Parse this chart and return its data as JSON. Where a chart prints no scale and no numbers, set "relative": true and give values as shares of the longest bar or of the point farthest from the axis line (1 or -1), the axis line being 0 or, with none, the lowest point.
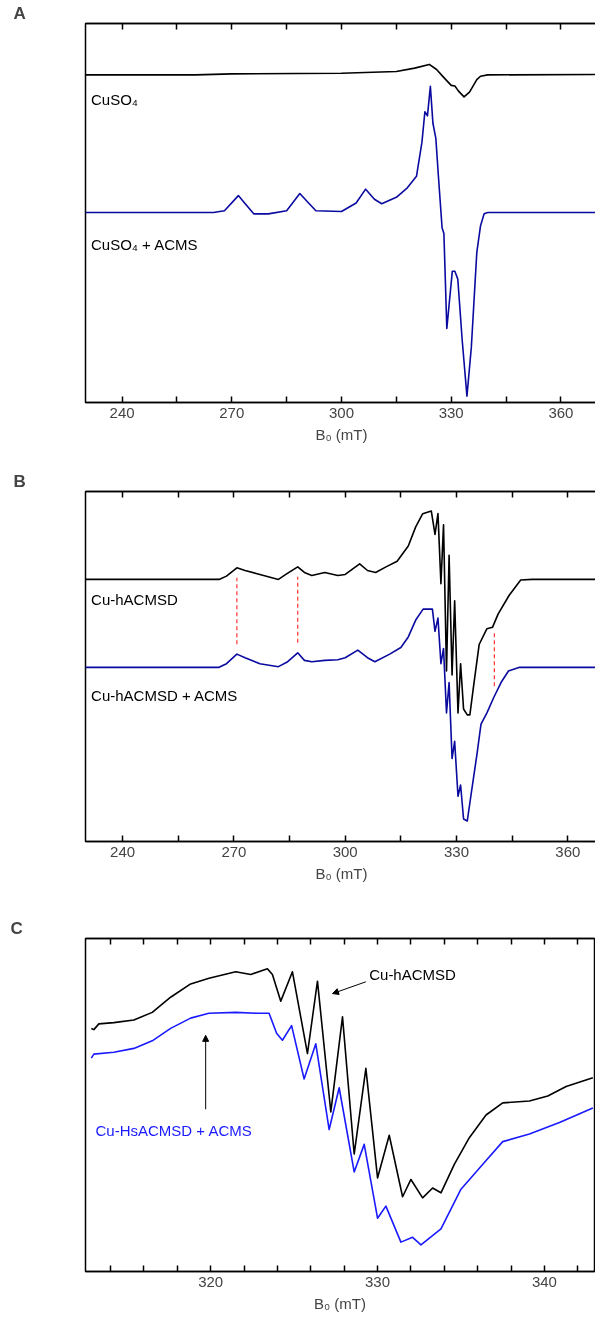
{
  "chart_data": [
    {
      "type": "line",
      "title": "A",
      "xlabel": "B₀ (mT)",
      "relative": true,
      "xlim": [
        230,
        370
      ],
      "xticks": [
        240,
        {
          "value": 255,
          "label": null
        },
        270,
        {
          "value": 285,
          "label": null
        },
        300,
        {
          "value": 315,
          "label": null
        },
        330,
        {
          "value": 345,
          "label": null
        },
        360
      ],
      "series": [
        {
          "name": "CuSO₄",
          "color": "#000000",
          "x": [
            230,
            260,
            270,
            300,
            315,
            320,
            324,
            326,
            328,
            330,
            331,
            332,
            333.5,
            335,
            337,
            338,
            340,
            370
          ],
          "values": [
            0.969,
            0.969,
            0.972,
            0.974,
            0.979,
            0.989,
            1.0,
            0.985,
            0.961,
            0.938,
            0.936,
            0.921,
            0.904,
            0.918,
            0.955,
            0.965,
            0.969,
            0.97
          ]
        },
        {
          "name": "CuSO₄ + ACMS",
          "color": "#0a0aa0",
          "x": [
            230,
            265,
            268,
            271.8,
            273.5,
            276,
            280,
            285,
            288.6,
            291,
            293,
            300,
            304,
            306.6,
            309,
            311,
            315,
            318,
            320.5,
            322,
            322.8,
            323.5,
            324.3,
            325,
            325.8,
            326.5,
            327.5,
            328,
            328.8,
            329.2,
            330.3,
            331,
            331.8,
            333,
            334.3,
            335.5,
            337,
            338,
            339,
            340,
            370
          ],
          "values": [
            0.562,
            0.562,
            0.567,
            0.612,
            0.59,
            0.558,
            0.558,
            0.567,
            0.618,
            0.59,
            0.567,
            0.565,
            0.59,
            0.631,
            0.601,
            0.588,
            0.607,
            0.635,
            0.669,
            0.77,
            0.86,
            0.848,
            0.935,
            0.826,
            0.781,
            0.669,
            0.517,
            0.5,
            0.219,
            0.264,
            0.388,
            0.388,
            0.365,
            0.185,
            0.019,
            0.163,
            0.444,
            0.522,
            0.558,
            0.562,
            0.562
          ]
        }
      ]
    },
    {
      "type": "line",
      "title": "B",
      "xlabel": "B₀ (mT)",
      "relative": true,
      "xlim": [
        230,
        368
      ],
      "xticks": [
        240,
        {
          "value": 255,
          "label": null
        },
        270,
        {
          "value": 285,
          "label": null
        },
        300,
        {
          "value": 315,
          "label": null
        },
        330,
        {
          "value": 345,
          "label": null
        },
        360
      ],
      "ref_lines": [
        {
          "axis": "x",
          "value": 270.8,
          "color": "#ff3333",
          "line_style": "dashed"
        },
        {
          "axis": "x",
          "value": 287.2,
          "color": "#ff3333",
          "line_style": "dashed"
        },
        {
          "axis": "x",
          "value": 340.2,
          "color": "#ff3333",
          "line_style": "dashed"
        }
      ],
      "series": [
        {
          "name": "Cu-hACMSD",
          "color": "#000000",
          "x": [
            230,
            266,
            268,
            270.8,
            273,
            276,
            282,
            284,
            287.2,
            289,
            291,
            294.5,
            298,
            300,
            303.9,
            306,
            308.2,
            311,
            314,
            317,
            319,
            320.9,
            323.2,
            324.2,
            325,
            325.8,
            326.5,
            327.3,
            328,
            328.8,
            329.5,
            330.4,
            331.1,
            331.9,
            332.9,
            333.6,
            334.6,
            336.1,
            338.2,
            339.7,
            341.2,
            344.2,
            347.3,
            350.4,
            368
          ],
          "values": [
            0.793,
            0.793,
            0.803,
            0.828,
            0.82,
            0.811,
            0.793,
            0.808,
            0.831,
            0.814,
            0.805,
            0.814,
            0.805,
            0.808,
            0.84,
            0.82,
            0.814,
            0.831,
            0.848,
            0.894,
            0.952,
            0.992,
            1.0,
            0.929,
            0.992,
            0.78,
            0.958,
            0.516,
            0.866,
            0.504,
            0.728,
            0.389,
            0.538,
            0.401,
            0.383,
            0.383,
            0.47,
            0.596,
            0.644,
            0.648,
            0.688,
            0.745,
            0.791,
            0.793,
            0.793
          ]
        },
        {
          "name": "Cu-hACMSD + ACMS",
          "color": "#0a0aa0",
          "x": [
            230,
            266,
            268,
            270.8,
            273,
            277,
            282,
            284.5,
            287.2,
            289,
            291,
            294.5,
            298,
            300,
            303.4,
            306,
            308,
            312,
            315,
            317,
            319,
            321,
            323.5,
            324.2,
            325,
            325.8,
            326.5,
            327.3,
            328,
            328.8,
            329.5,
            330.4,
            331.1,
            331.9,
            332.9,
            334,
            335.5,
            336.6,
            338.2,
            340,
            342,
            344,
            347,
            368
          ],
          "values": [
            0.527,
            0.527,
            0.538,
            0.567,
            0.556,
            0.538,
            0.529,
            0.544,
            0.571,
            0.548,
            0.544,
            0.548,
            0.55,
            0.556,
            0.579,
            0.556,
            0.544,
            0.567,
            0.587,
            0.619,
            0.67,
            0.703,
            0.703,
            0.636,
            0.676,
            0.538,
            0.584,
            0.389,
            0.481,
            0.251,
            0.303,
            0.137,
            0.171,
            0.068,
            0.062,
            0.148,
            0.263,
            0.355,
            0.389,
            0.435,
            0.481,
            0.516,
            0.527,
            0.527
          ]
        }
      ]
    },
    {
      "type": "line",
      "title": "C",
      "xlabel": "B₀ (mT)",
      "relative": true,
      "xlim": [
        312.5,
        343
      ],
      "xticks": [
        {
          "value": 314,
          "label": null
        },
        {
          "value": 316,
          "label": null
        },
        {
          "value": 318,
          "label": null
        },
        320,
        {
          "value": 322,
          "label": null
        },
        {
          "value": 324,
          "label": null
        },
        {
          "value": 326,
          "label": null
        },
        {
          "value": 328,
          "label": null
        },
        330,
        {
          "value": 332,
          "label": null
        },
        {
          "value": 334,
          "label": null
        },
        {
          "value": 336,
          "label": null
        },
        {
          "value": 338,
          "label": null
        },
        340,
        {
          "value": 342,
          "label": null
        }
      ],
      "series": [
        {
          "name": "Cu-hACMSD",
          "color": "#000000",
          "x": [
            312.85,
            313.0,
            313.3,
            314.2,
            315.4,
            316.5,
            317.6,
            318.8,
            319.9,
            321.5,
            322.4,
            323.4,
            323.7,
            324.2,
            324.9,
            325.8,
            326.4,
            327.2,
            327.9,
            328.6,
            329.3,
            330.0,
            330.7,
            331.5,
            332.0,
            332.7,
            333.3,
            333.8,
            334.6,
            335.5,
            336.5,
            337.5,
            339.1,
            340.2,
            341.3,
            342.9
          ],
          "values": [
            0.803,
            0.799,
            0.818,
            0.822,
            0.831,
            0.856,
            0.906,
            0.95,
            0.969,
            0.99,
            0.981,
            1.0,
            0.981,
            0.893,
            0.99,
            0.72,
            0.959,
            0.527,
            0.841,
            0.388,
            0.671,
            0.309,
            0.45,
            0.247,
            0.304,
            0.243,
            0.276,
            0.26,
            0.354,
            0.442,
            0.517,
            0.557,
            0.563,
            0.58,
            0.611,
            0.64
          ]
        },
        {
          "name": "Cu-HsACMSD + ACMS",
          "color": "#1a1aff",
          "x": [
            312.85,
            313.0,
            314.2,
            315.4,
            316.5,
            317.6,
            318.8,
            319.9,
            321.5,
            322.8,
            323.5,
            323.95,
            324.3,
            324.85,
            325.6,
            326.3,
            327.1,
            327.7,
            328.6,
            329.2,
            330.0,
            330.5,
            331.4,
            332.1,
            332.6,
            333.8,
            335.0,
            336.4,
            337.5,
            339.1,
            340.9,
            342.9
          ],
          "values": [
            0.705,
            0.718,
            0.724,
            0.737,
            0.762,
            0.803,
            0.837,
            0.853,
            0.856,
            0.853,
            0.853,
            0.787,
            0.764,
            0.812,
            0.636,
            0.752,
            0.469,
            0.607,
            0.329,
            0.42,
            0.176,
            0.216,
            0.097,
            0.113,
            0.088,
            0.141,
            0.272,
            0.36,
            0.429,
            0.454,
            0.492,
            0.54
          ]
        }
      ]
    }
  ]
}
